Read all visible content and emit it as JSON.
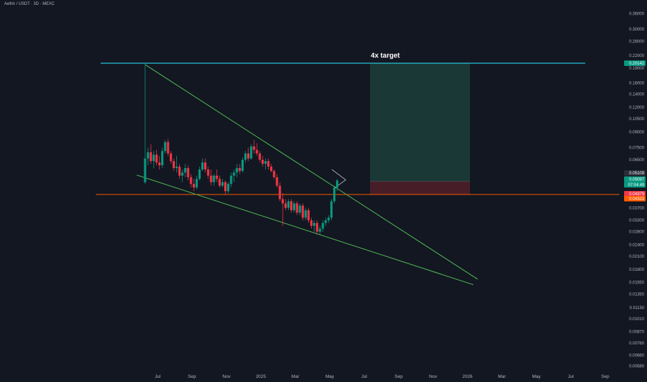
{
  "header": {
    "symbol": "Aethir / USDT · 3D · MEXC"
  },
  "annotations": {
    "target_label": "4x target"
  },
  "price_tags": [
    {
      "value": "0.20142",
      "color": "#089981"
    },
    {
      "value": "0.05109",
      "color": "#2a2e39"
    },
    {
      "value": "0.05097",
      "color": "#089981"
    },
    {
      "value": "07:04:49",
      "color": "#089981"
    },
    {
      "value": "0.04379",
      "color": "#f23645"
    },
    {
      "value": "0.04333",
      "color": "#ff5a00"
    }
  ],
  "chart_data": {
    "type": "candlestick",
    "yscale": "log",
    "ylim": [
      0.0055,
      0.42
    ],
    "yticks": [
      "0.42000",
      "0.36000",
      "0.30000",
      "0.26000",
      "0.22000",
      "0.19000",
      "0.16000",
      "0.14000",
      "0.12000",
      "0.10500",
      "0.09000",
      "0.07500",
      "0.06500",
      "0.05600",
      "0.04350",
      "0.03700",
      "0.03200",
      "0.02800",
      "0.02400",
      "0.02100",
      "0.01800",
      "0.01550",
      "0.01350",
      "0.01150",
      "0.01010",
      "0.00870",
      "0.00760",
      "0.00660",
      "0.00580"
    ],
    "xticks": [
      "Jul",
      "Sep",
      "Nov",
      "2025",
      "Mar",
      "May",
      "Jul",
      "Sep",
      "Nov",
      "2026",
      "Mar",
      "May",
      "Jul",
      "Sep"
    ],
    "colors": {
      "up": "#089981",
      "down": "#f23645",
      "trendline": "#4caf50",
      "support": "#ff5a00",
      "target": "#26c6da"
    },
    "horizontal_lines": [
      {
        "name": "target",
        "value": 0.2014
      },
      {
        "name": "entry",
        "value": 0.0433
      }
    ],
    "pattern": "falling wedge",
    "candles": [
      {
        "o": 0.05,
        "h": 0.2,
        "l": 0.049,
        "c": 0.066
      },
      {
        "o": 0.066,
        "h": 0.075,
        "l": 0.061,
        "c": 0.071
      },
      {
        "o": 0.071,
        "h": 0.078,
        "l": 0.062,
        "c": 0.064
      },
      {
        "o": 0.064,
        "h": 0.072,
        "l": 0.059,
        "c": 0.069
      },
      {
        "o": 0.069,
        "h": 0.073,
        "l": 0.061,
        "c": 0.063
      },
      {
        "o": 0.063,
        "h": 0.068,
        "l": 0.058,
        "c": 0.061
      },
      {
        "o": 0.061,
        "h": 0.075,
        "l": 0.059,
        "c": 0.072
      },
      {
        "o": 0.072,
        "h": 0.082,
        "l": 0.07,
        "c": 0.08
      },
      {
        "o": 0.08,
        "h": 0.083,
        "l": 0.068,
        "c": 0.07
      },
      {
        "o": 0.07,
        "h": 0.072,
        "l": 0.062,
        "c": 0.064
      },
      {
        "o": 0.064,
        "h": 0.066,
        "l": 0.057,
        "c": 0.059
      },
      {
        "o": 0.059,
        "h": 0.068,
        "l": 0.056,
        "c": 0.06
      },
      {
        "o": 0.06,
        "h": 0.062,
        "l": 0.052,
        "c": 0.054
      },
      {
        "o": 0.054,
        "h": 0.058,
        "l": 0.05,
        "c": 0.056
      },
      {
        "o": 0.056,
        "h": 0.062,
        "l": 0.053,
        "c": 0.059
      },
      {
        "o": 0.059,
        "h": 0.061,
        "l": 0.051,
        "c": 0.053
      },
      {
        "o": 0.053,
        "h": 0.055,
        "l": 0.047,
        "c": 0.049
      },
      {
        "o": 0.049,
        "h": 0.052,
        "l": 0.045,
        "c": 0.047
      },
      {
        "o": 0.047,
        "h": 0.054,
        "l": 0.046,
        "c": 0.052
      },
      {
        "o": 0.052,
        "h": 0.06,
        "l": 0.051,
        "c": 0.058
      },
      {
        "o": 0.058,
        "h": 0.066,
        "l": 0.057,
        "c": 0.063
      },
      {
        "o": 0.063,
        "h": 0.066,
        "l": 0.056,
        "c": 0.058
      },
      {
        "o": 0.058,
        "h": 0.06,
        "l": 0.052,
        "c": 0.054
      },
      {
        "o": 0.054,
        "h": 0.058,
        "l": 0.048,
        "c": 0.05
      },
      {
        "o": 0.05,
        "h": 0.055,
        "l": 0.048,
        "c": 0.054
      },
      {
        "o": 0.054,
        "h": 0.058,
        "l": 0.05,
        "c": 0.052
      },
      {
        "o": 0.052,
        "h": 0.054,
        "l": 0.047,
        "c": 0.048
      },
      {
        "o": 0.048,
        "h": 0.052,
        "l": 0.047,
        "c": 0.05
      },
      {
        "o": 0.05,
        "h": 0.051,
        "l": 0.043,
        "c": 0.045
      },
      {
        "o": 0.045,
        "h": 0.05,
        "l": 0.044,
        "c": 0.049
      },
      {
        "o": 0.049,
        "h": 0.056,
        "l": 0.047,
        "c": 0.054
      },
      {
        "o": 0.054,
        "h": 0.058,
        "l": 0.05,
        "c": 0.056
      },
      {
        "o": 0.056,
        "h": 0.062,
        "l": 0.053,
        "c": 0.059
      },
      {
        "o": 0.059,
        "h": 0.062,
        "l": 0.055,
        "c": 0.057
      },
      {
        "o": 0.057,
        "h": 0.067,
        "l": 0.056,
        "c": 0.065
      },
      {
        "o": 0.065,
        "h": 0.072,
        "l": 0.063,
        "c": 0.07
      },
      {
        "o": 0.07,
        "h": 0.075,
        "l": 0.064,
        "c": 0.066
      },
      {
        "o": 0.066,
        "h": 0.078,
        "l": 0.065,
        "c": 0.076
      },
      {
        "o": 0.076,
        "h": 0.082,
        "l": 0.07,
        "c": 0.073
      },
      {
        "o": 0.073,
        "h": 0.079,
        "l": 0.068,
        "c": 0.07
      },
      {
        "o": 0.07,
        "h": 0.072,
        "l": 0.063,
        "c": 0.065
      },
      {
        "o": 0.065,
        "h": 0.068,
        "l": 0.06,
        "c": 0.062
      },
      {
        "o": 0.062,
        "h": 0.066,
        "l": 0.058,
        "c": 0.064
      },
      {
        "o": 0.064,
        "h": 0.066,
        "l": 0.058,
        "c": 0.06
      },
      {
        "o": 0.06,
        "h": 0.062,
        "l": 0.056,
        "c": 0.057
      },
      {
        "o": 0.057,
        "h": 0.058,
        "l": 0.052,
        "c": 0.053
      },
      {
        "o": 0.053,
        "h": 0.055,
        "l": 0.047,
        "c": 0.048
      },
      {
        "o": 0.048,
        "h": 0.05,
        "l": 0.04,
        "c": 0.041
      },
      {
        "o": 0.041,
        "h": 0.044,
        "l": 0.03,
        "c": 0.039
      },
      {
        "o": 0.039,
        "h": 0.041,
        "l": 0.036,
        "c": 0.037
      },
      {
        "o": 0.037,
        "h": 0.041,
        "l": 0.036,
        "c": 0.04
      },
      {
        "o": 0.04,
        "h": 0.041,
        "l": 0.035,
        "c": 0.036
      },
      {
        "o": 0.036,
        "h": 0.04,
        "l": 0.035,
        "c": 0.039
      },
      {
        "o": 0.039,
        "h": 0.04,
        "l": 0.034,
        "c": 0.035
      },
      {
        "o": 0.035,
        "h": 0.039,
        "l": 0.034,
        "c": 0.038
      },
      {
        "o": 0.038,
        "h": 0.039,
        "l": 0.032,
        "c": 0.033
      },
      {
        "o": 0.033,
        "h": 0.037,
        "l": 0.032,
        "c": 0.036
      },
      {
        "o": 0.036,
        "h": 0.037,
        "l": 0.031,
        "c": 0.032
      },
      {
        "o": 0.032,
        "h": 0.033,
        "l": 0.029,
        "c": 0.03
      },
      {
        "o": 0.03,
        "h": 0.032,
        "l": 0.028,
        "c": 0.031
      },
      {
        "o": 0.031,
        "h": 0.032,
        "l": 0.027,
        "c": 0.028
      },
      {
        "o": 0.028,
        "h": 0.03,
        "l": 0.027,
        "c": 0.029
      },
      {
        "o": 0.029,
        "h": 0.032,
        "l": 0.028,
        "c": 0.031
      },
      {
        "o": 0.031,
        "h": 0.033,
        "l": 0.03,
        "c": 0.032
      },
      {
        "o": 0.032,
        "h": 0.034,
        "l": 0.031,
        "c": 0.033
      },
      {
        "o": 0.033,
        "h": 0.041,
        "l": 0.032,
        "c": 0.04
      },
      {
        "o": 0.04,
        "h": 0.048,
        "l": 0.039,
        "c": 0.047
      },
      {
        "o": 0.047,
        "h": 0.052,
        "l": 0.045,
        "c": 0.051
      }
    ]
  }
}
